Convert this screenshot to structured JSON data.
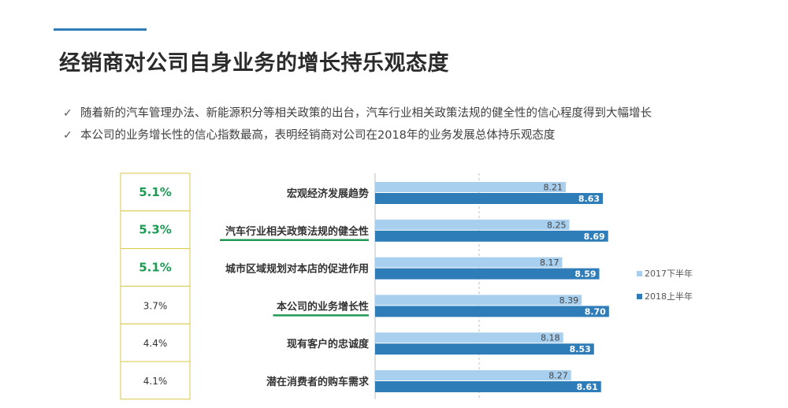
{
  "slide": {
    "title": "经销商对公司自身业务的增长持乐观态度",
    "bullets": [
      "随着新的汽车管理办法、新能源积分等相关政策的出台，汽车行业相关政策法规的健全性的信心程度得到大幅增长",
      "本公司的业务增长性的信心指数最高，表明经销商对公司在2018年的业务发展总体持乐观态度"
    ]
  },
  "colors": {
    "accent": "#2e7db9",
    "series_2017": "#a9cfee",
    "series_2018": "#2e7db9",
    "highlight_green": "#1f9a55",
    "box_border": "#d9c94a"
  },
  "chart_data": {
    "type": "bar",
    "orientation": "horizontal",
    "categories": [
      "宏观经济发展趋势",
      "汽车行业相关政策法规的健全性",
      "城市区域规划对本店的促进作用",
      "本公司的业务增长性",
      "现有客户的忠诚度",
      "潜在消费者的购车需求"
    ],
    "growth_labels": [
      "5.1%",
      "5.3%",
      "5.1%",
      "3.7%",
      "4.4%",
      "4.1%"
    ],
    "highlighted_growth": [
      true,
      true,
      true,
      false,
      false,
      false
    ],
    "underlined_categories": [
      false,
      true,
      false,
      true,
      false,
      false
    ],
    "series": [
      {
        "name": "2017下半年",
        "values": [
          8.21,
          8.25,
          8.17,
          8.39,
          8.18,
          8.27
        ]
      },
      {
        "name": "2018上半年",
        "values": [
          8.63,
          8.69,
          8.59,
          8.7,
          8.53,
          8.61
        ]
      }
    ],
    "legend_position": "right"
  }
}
